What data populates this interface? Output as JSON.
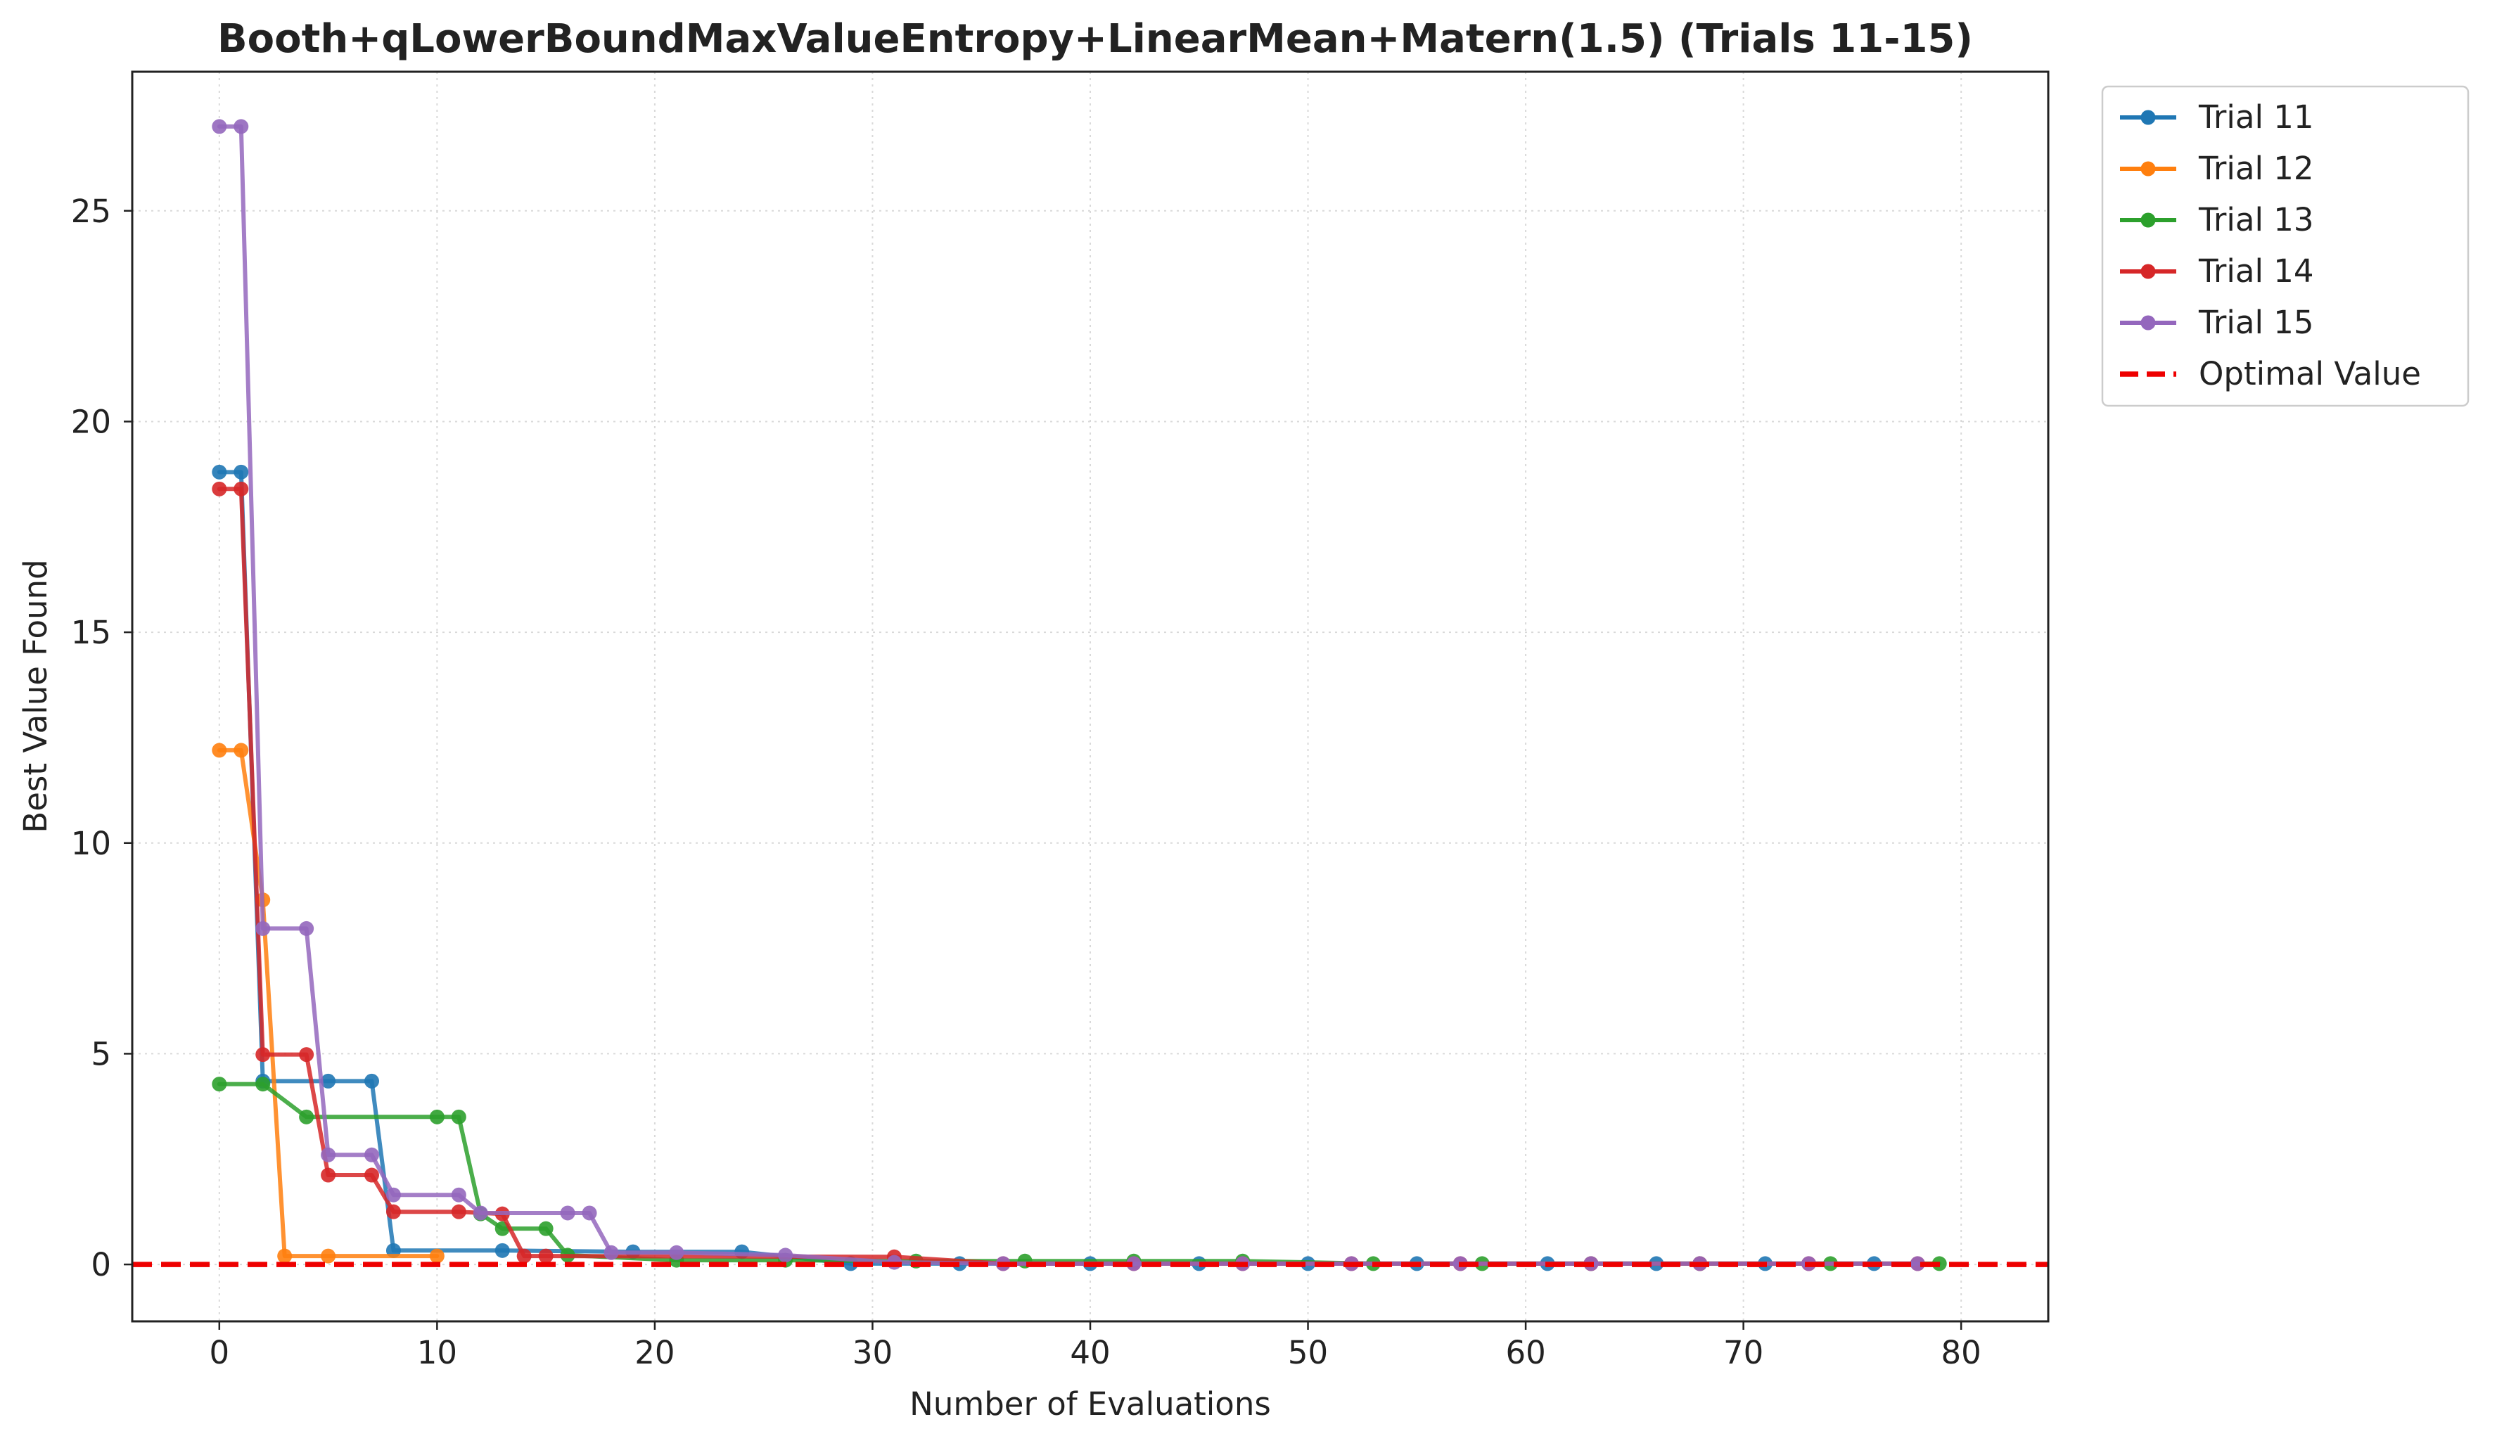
{
  "chart_data": {
    "type": "line",
    "title": "Booth+qLowerBoundMaxValueEntropy+LinearMean+Matern(1.5) (Trials 11-15)",
    "xlabel": "Number of Evaluations",
    "ylabel": "Best Value Found",
    "xlim": [
      -4,
      84
    ],
    "ylim": [
      -1.35,
      28.3
    ],
    "xticks": [
      0,
      10,
      20,
      30,
      40,
      50,
      60,
      70,
      80
    ],
    "yticks": [
      0,
      5,
      10,
      15,
      20,
      25
    ],
    "grid": true,
    "legend_position": "outside-top-right",
    "series": [
      {
        "name": "Trial 11",
        "color": "#1f77b4",
        "x": [
          0,
          1,
          2,
          5,
          7,
          8,
          13,
          19,
          24,
          29,
          34,
          40,
          45,
          50,
          55,
          61,
          66,
          71,
          76
        ],
        "y": [
          18.8,
          18.8,
          4.35,
          4.35,
          4.35,
          0.33,
          0.33,
          0.3,
          0.3,
          0.02,
          0.02,
          0.02,
          0.02,
          0.02,
          0.02,
          0.02,
          0.02,
          0.02,
          0.02
        ]
      },
      {
        "name": "Trial 12",
        "color": "#ff7f0e",
        "x": [
          0,
          1,
          2,
          3,
          5,
          10
        ],
        "y": [
          12.2,
          12.2,
          8.65,
          0.2,
          0.2,
          0.2
        ]
      },
      {
        "name": "Trial 13",
        "color": "#2ca02c",
        "x": [
          0,
          2,
          4,
          10,
          11,
          12,
          13,
          15,
          16,
          21,
          26,
          32,
          37,
          42,
          47,
          53,
          58,
          63,
          68,
          74,
          79
        ],
        "y": [
          4.28,
          4.28,
          3.5,
          3.5,
          3.5,
          1.2,
          0.85,
          0.85,
          0.22,
          0.1,
          0.1,
          0.08,
          0.08,
          0.08,
          0.08,
          0.02,
          0.02,
          0.02,
          0.02,
          0.02,
          0.02
        ]
      },
      {
        "name": "Trial 14",
        "color": "#d62728",
        "x": [
          0,
          1,
          2,
          4,
          5,
          7,
          8,
          11,
          13,
          14,
          15,
          31,
          36,
          42,
          47,
          52,
          57,
          63,
          68,
          73,
          78
        ],
        "y": [
          18.4,
          18.4,
          4.98,
          4.98,
          2.12,
          2.12,
          1.25,
          1.25,
          1.2,
          0.2,
          0.2,
          0.18,
          0.02,
          0.02,
          0.02,
          0.02,
          0.02,
          0.02,
          0.02,
          0.02,
          0.02
        ]
      },
      {
        "name": "Trial 15",
        "color": "#9467bd",
        "x": [
          0,
          1,
          2,
          4,
          5,
          7,
          8,
          11,
          12,
          16,
          17,
          18,
          21,
          26,
          31,
          36,
          42,
          47,
          52,
          57,
          63,
          68,
          73,
          78
        ],
        "y": [
          27.0,
          27.0,
          7.97,
          7.97,
          2.6,
          2.6,
          1.65,
          1.65,
          1.22,
          1.22,
          1.22,
          0.28,
          0.28,
          0.22,
          0.05,
          0.02,
          0.02,
          0.02,
          0.02,
          0.02,
          0.02,
          0.02,
          0.02,
          0.02
        ]
      }
    ],
    "reference_line": {
      "name": "Optimal Value",
      "value": 0,
      "color": "#ee0000",
      "style": "dashed"
    }
  }
}
